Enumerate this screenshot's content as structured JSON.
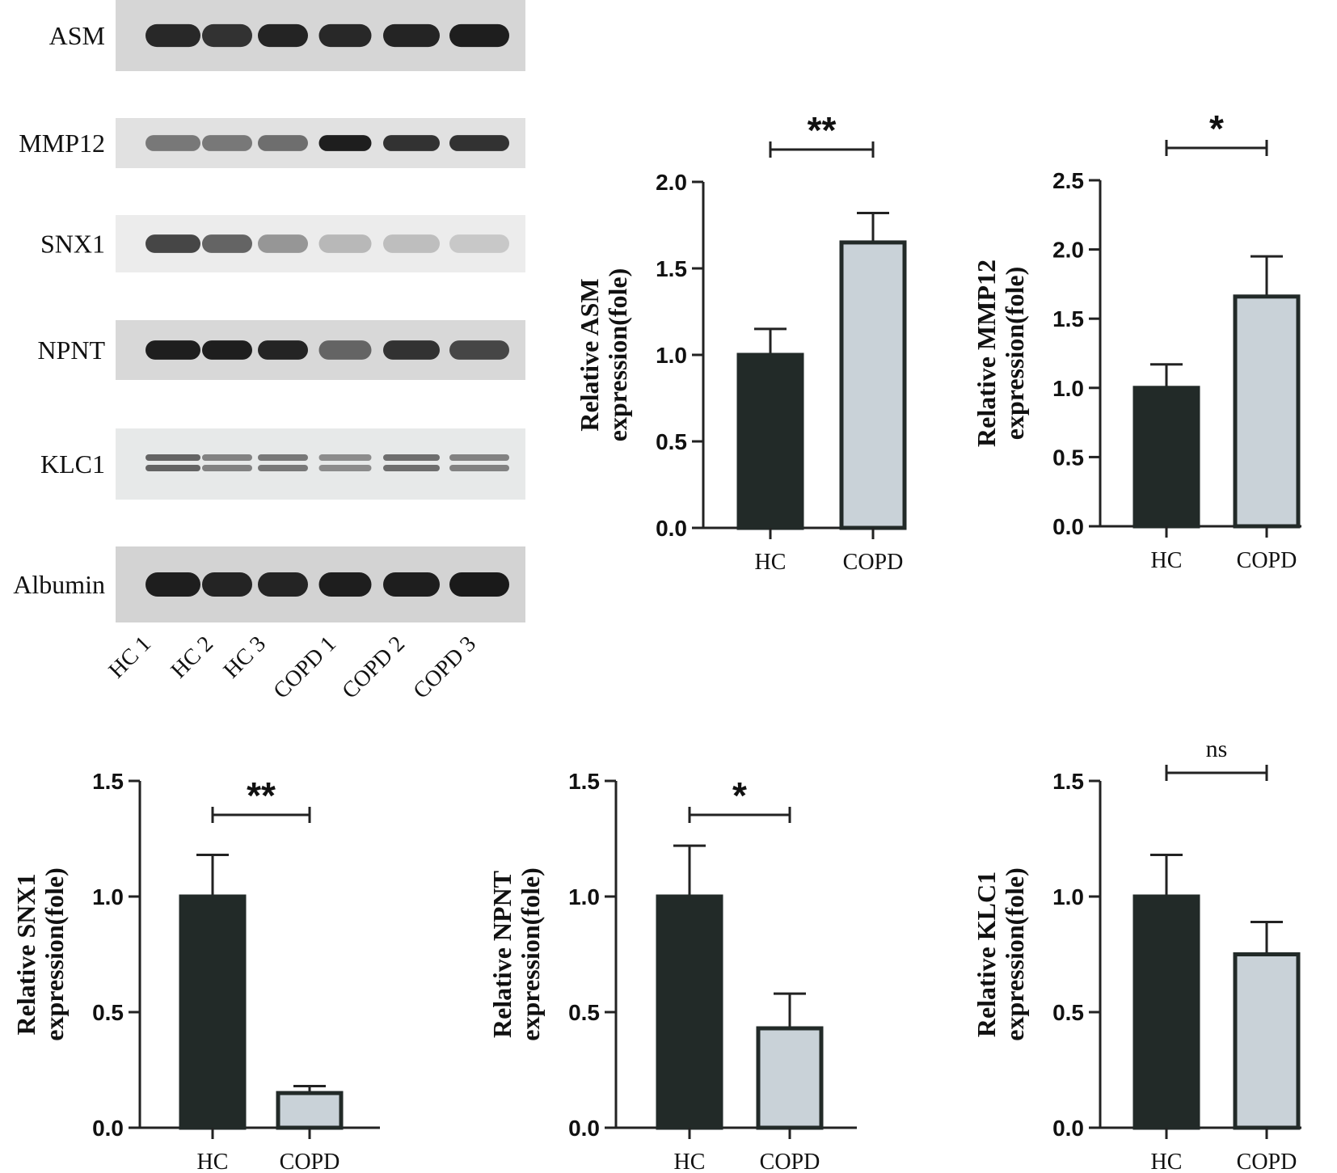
{
  "blot": {
    "rows": [
      {
        "label": "ASM",
        "intensities": [
          0.9,
          0.85,
          0.92,
          0.9,
          0.92,
          0.95
        ],
        "dual": false
      },
      {
        "label": "MMP12",
        "intensities": [
          0.5,
          0.5,
          0.55,
          0.95,
          0.85,
          0.85
        ],
        "dual": false
      },
      {
        "label": "SNX1",
        "intensities": [
          0.75,
          0.6,
          0.35,
          0.18,
          0.15,
          0.1
        ],
        "dual": false
      },
      {
        "label": "NPNT",
        "intensities": [
          0.95,
          0.95,
          0.92,
          0.6,
          0.85,
          0.75
        ],
        "dual": false
      },
      {
        "label": "KLC1",
        "intensities": [
          0.6,
          0.45,
          0.5,
          0.4,
          0.55,
          0.45
        ],
        "dual": true
      },
      {
        "label": "Albumin",
        "intensities": [
          0.95,
          0.92,
          0.92,
          0.95,
          0.95,
          0.97
        ],
        "dual": false
      }
    ],
    "lanes": [
      "HC 1",
      "HC 2",
      "HC 3",
      "COPD 1",
      "COPD 2",
      "COPD 3"
    ]
  },
  "chart_data": [
    {
      "type": "bar",
      "categories": [
        "HC",
        "COPD"
      ],
      "values": [
        1.0,
        1.65
      ],
      "errors": [
        0.15,
        0.17
      ],
      "ylabel_line1": "Relative ASM",
      "ylabel_line2": "expression(fole)",
      "ylim": [
        0,
        2.0
      ],
      "yticks": [
        "0.0",
        "0.5",
        "1.0",
        "1.5",
        "2.0"
      ],
      "significance": "**",
      "colors": [
        "#222a28",
        "#c9d2d8"
      ]
    },
    {
      "type": "bar",
      "categories": [
        "HC",
        "COPD"
      ],
      "values": [
        1.0,
        1.66
      ],
      "errors": [
        0.17,
        0.29
      ],
      "ylabel_line1": "Relative MMP12",
      "ylabel_line2": "expression(fole)",
      "ylim": [
        0,
        2.5
      ],
      "yticks": [
        "0.0",
        "0.5",
        "1.0",
        "1.5",
        "2.0",
        "2.5"
      ],
      "significance": "*",
      "colors": [
        "#222a28",
        "#c9d2d8"
      ]
    },
    {
      "type": "bar",
      "categories": [
        "HC",
        "COPD"
      ],
      "values": [
        1.0,
        0.15
      ],
      "errors": [
        0.18,
        0.03
      ],
      "ylabel_line1": "Relative SNX1",
      "ylabel_line2": "expression(fole)",
      "ylim": [
        0,
        1.5
      ],
      "yticks": [
        "0.0",
        "0.5",
        "1.0",
        "1.5"
      ],
      "significance": "**",
      "colors": [
        "#222a28",
        "#c9d2d8"
      ]
    },
    {
      "type": "bar",
      "categories": [
        "HC",
        "COPD"
      ],
      "values": [
        1.0,
        0.43
      ],
      "errors": [
        0.22,
        0.15
      ],
      "ylabel_line1": "Relative NPNT",
      "ylabel_line2": "expression(fole)",
      "ylim": [
        0,
        1.5
      ],
      "yticks": [
        "0.0",
        "0.5",
        "1.0",
        "1.5"
      ],
      "significance": "*",
      "colors": [
        "#222a28",
        "#c9d2d8"
      ]
    },
    {
      "type": "bar",
      "categories": [
        "HC",
        "COPD"
      ],
      "values": [
        1.0,
        0.75
      ],
      "errors": [
        0.18,
        0.14
      ],
      "ylabel_line1": "Relative KLC1",
      "ylabel_line2": "expression(fole)",
      "ylim": [
        0,
        1.5
      ],
      "yticks": [
        "0.0",
        "0.5",
        "1.0",
        "1.5"
      ],
      "significance": "ns",
      "colors": [
        "#222a28",
        "#c9d2d8"
      ]
    }
  ]
}
